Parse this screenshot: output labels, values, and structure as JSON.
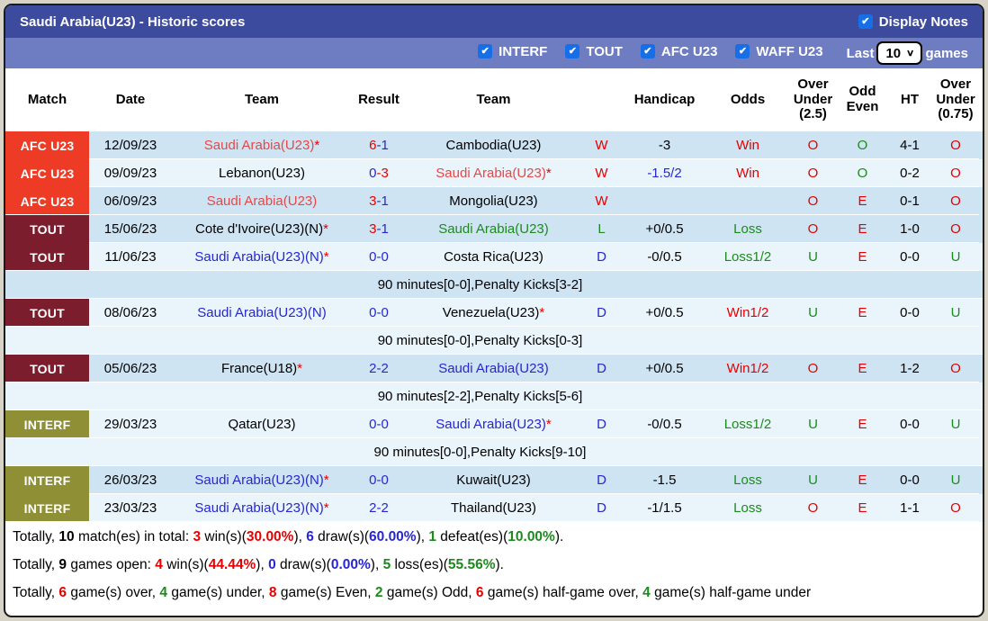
{
  "titlebar": {
    "title": "Saudi Arabia(U23) - Historic scores",
    "display_notes_label": "Display Notes"
  },
  "filterbar": {
    "checkboxes": [
      "INTERF",
      "TOUT",
      "AFC U23",
      "WAFF U23"
    ],
    "last_label": "Last",
    "last_value": "10",
    "games_label": "games"
  },
  "colors": {
    "accent_header": "#3d4b9f",
    "accent_filterbar": "#6e7cc2",
    "badge_afc_u23": "#ee3b26",
    "badge_tout": "#7b1d2c",
    "badge_interf": "#8f8f35",
    "win_red": "#e60000",
    "draw_blue": "#2727cf",
    "loss_green": "#1d8a1d",
    "row_shade_dark": "#cfe4f3",
    "row_shade_light": "#e9f4fb"
  },
  "table": {
    "headers": [
      "Match",
      "Date",
      "Team",
      "Result",
      "Team",
      "",
      "Handicap",
      "Odds",
      "Over Under (2.5)",
      "Odd Even",
      "HT",
      "Over Under (0.75)"
    ],
    "rows": [
      {
        "type": "match",
        "comp": "AFC U23",
        "ck": "afc",
        "join_next": true,
        "date": "12/09/23",
        "t1": {
          "x": "Saudi Arabia(U23)",
          "star": true,
          "c": "tr"
        },
        "s1": {
          "x": "6",
          "c": "r"
        },
        "s2": {
          "x": "1",
          "c": "b"
        },
        "t2": {
          "x": "Cambodia(U23)",
          "star": false,
          "c": "k"
        },
        "wdl": {
          "x": "W",
          "c": "r"
        },
        "hc": {
          "x": "-3",
          "c": "k"
        },
        "od": {
          "x": "Win",
          "c": "r"
        },
        "ou": {
          "x": "O",
          "c": "r"
        },
        "oe": {
          "x": "O",
          "c": "g"
        },
        "ht": "4-1",
        "ou2": {
          "x": "O",
          "c": "r"
        },
        "shade": "m"
      },
      {
        "type": "match",
        "comp": "AFC U23",
        "ck": "afc",
        "join_next": true,
        "date": "09/09/23",
        "t1": {
          "x": "Lebanon(U23)",
          "star": false,
          "c": "k"
        },
        "s1": {
          "x": "0",
          "c": "b"
        },
        "s2": {
          "x": "3",
          "c": "r"
        },
        "t2": {
          "x": "Saudi Arabia(U23)",
          "star": true,
          "c": "tr"
        },
        "wdl": {
          "x": "W",
          "c": "r"
        },
        "hc": {
          "x": "-1.5/2",
          "c": "b"
        },
        "od": {
          "x": "Win",
          "c": "r"
        },
        "ou": {
          "x": "O",
          "c": "r"
        },
        "oe": {
          "x": "O",
          "c": "g"
        },
        "ht": "0-2",
        "ou2": {
          "x": "O",
          "c": "r"
        },
        "shade": "l"
      },
      {
        "type": "match",
        "comp": "AFC U23",
        "ck": "afc",
        "join_next": false,
        "date": "06/09/23",
        "t1": {
          "x": "Saudi Arabia(U23)",
          "star": false,
          "c": "tr"
        },
        "s1": {
          "x": "3",
          "c": "r"
        },
        "s2": {
          "x": "1",
          "c": "b"
        },
        "t2": {
          "x": "Mongolia(U23)",
          "star": false,
          "c": "k"
        },
        "wdl": {
          "x": "W",
          "c": "r"
        },
        "hc": {
          "x": "",
          "c": "k"
        },
        "od": {
          "x": "",
          "c": "k"
        },
        "ou": {
          "x": "O",
          "c": "r"
        },
        "oe": {
          "x": "E",
          "c": "r"
        },
        "ht": "0-1",
        "ou2": {
          "x": "O",
          "c": "r"
        },
        "shade": "m"
      },
      {
        "type": "match",
        "comp": "TOUT",
        "ck": "tout",
        "join_next": true,
        "date": "15/06/23",
        "t1": {
          "x": "Cote d'Ivoire(U23)(N)",
          "star": true,
          "c": "k"
        },
        "s1": {
          "x": "3",
          "c": "r"
        },
        "s2": {
          "x": "1",
          "c": "b"
        },
        "t2": {
          "x": "Saudi Arabia(U23)",
          "star": false,
          "c": "g"
        },
        "wdl": {
          "x": "L",
          "c": "g"
        },
        "hc": {
          "x": "+0/0.5",
          "c": "k"
        },
        "od": {
          "x": "Loss",
          "c": "g"
        },
        "ou": {
          "x": "O",
          "c": "r"
        },
        "oe": {
          "x": "E",
          "c": "r"
        },
        "ht": "1-0",
        "ou2": {
          "x": "O",
          "c": "r"
        },
        "shade": "m"
      },
      {
        "type": "match",
        "comp": "TOUT",
        "ck": "tout",
        "join_next": false,
        "date": "11/06/23",
        "t1": {
          "x": "Saudi Arabia(U23)(N)",
          "star": true,
          "c": "b"
        },
        "s1": {
          "x": "0",
          "c": "b"
        },
        "s2": {
          "x": "0",
          "c": "b"
        },
        "t2": {
          "x": "Costa Rica(U23)",
          "star": false,
          "c": "k"
        },
        "wdl": {
          "x": "D",
          "c": "b"
        },
        "hc": {
          "x": "-0/0.5",
          "c": "k"
        },
        "od": {
          "x": "Loss1/2",
          "c": "g"
        },
        "ou": {
          "x": "U",
          "c": "g"
        },
        "oe": {
          "x": "E",
          "c": "r"
        },
        "ht": "0-0",
        "ou2": {
          "x": "U",
          "c": "g"
        },
        "shade": "l"
      },
      {
        "type": "note",
        "text": "90 minutes[0-0],Penalty Kicks[3-2]",
        "shade": "m"
      },
      {
        "type": "match",
        "comp": "TOUT",
        "ck": "tout",
        "join_next": false,
        "date": "08/06/23",
        "t1": {
          "x": "Saudi Arabia(U23)(N)",
          "star": false,
          "c": "b"
        },
        "s1": {
          "x": "0",
          "c": "b"
        },
        "s2": {
          "x": "0",
          "c": "b"
        },
        "t2": {
          "x": "Venezuela(U23)",
          "star": true,
          "c": "k"
        },
        "wdl": {
          "x": "D",
          "c": "b"
        },
        "hc": {
          "x": "+0/0.5",
          "c": "k"
        },
        "od": {
          "x": "Win1/2",
          "c": "r"
        },
        "ou": {
          "x": "U",
          "c": "g"
        },
        "oe": {
          "x": "E",
          "c": "r"
        },
        "ht": "0-0",
        "ou2": {
          "x": "U",
          "c": "g"
        },
        "shade": "l"
      },
      {
        "type": "note",
        "text": "90 minutes[0-0],Penalty Kicks[0-3]",
        "shade": "l"
      },
      {
        "type": "match",
        "comp": "TOUT",
        "ck": "tout",
        "join_next": false,
        "date": "05/06/23",
        "t1": {
          "x": "France(U18)",
          "star": true,
          "c": "k"
        },
        "s1": {
          "x": "2",
          "c": "b"
        },
        "s2": {
          "x": "2",
          "c": "b"
        },
        "t2": {
          "x": "Saudi Arabia(U23)",
          "star": false,
          "c": "b"
        },
        "wdl": {
          "x": "D",
          "c": "b"
        },
        "hc": {
          "x": "+0/0.5",
          "c": "k"
        },
        "od": {
          "x": "Win1/2",
          "c": "r"
        },
        "ou": {
          "x": "O",
          "c": "r"
        },
        "oe": {
          "x": "E",
          "c": "r"
        },
        "ht": "1-2",
        "ou2": {
          "x": "O",
          "c": "r"
        },
        "shade": "m"
      },
      {
        "type": "note",
        "text": "90 minutes[2-2],Penalty Kicks[5-6]",
        "shade": "l"
      },
      {
        "type": "match",
        "comp": "INTERF",
        "ck": "interf",
        "join_next": false,
        "date": "29/03/23",
        "t1": {
          "x": "Qatar(U23)",
          "star": false,
          "c": "k"
        },
        "s1": {
          "x": "0",
          "c": "b"
        },
        "s2": {
          "x": "0",
          "c": "b"
        },
        "t2": {
          "x": "Saudi Arabia(U23)",
          "star": true,
          "c": "b"
        },
        "wdl": {
          "x": "D",
          "c": "b"
        },
        "hc": {
          "x": "-0/0.5",
          "c": "k"
        },
        "od": {
          "x": "Loss1/2",
          "c": "g"
        },
        "ou": {
          "x": "U",
          "c": "g"
        },
        "oe": {
          "x": "E",
          "c": "r"
        },
        "ht": "0-0",
        "ou2": {
          "x": "U",
          "c": "g"
        },
        "shade": "l"
      },
      {
        "type": "note",
        "text": "90 minutes[0-0],Penalty Kicks[9-10]",
        "shade": "l"
      },
      {
        "type": "match",
        "comp": "INTERF",
        "ck": "interf",
        "join_next": true,
        "date": "26/03/23",
        "t1": {
          "x": "Saudi Arabia(U23)(N)",
          "star": true,
          "c": "b"
        },
        "s1": {
          "x": "0",
          "c": "b"
        },
        "s2": {
          "x": "0",
          "c": "b"
        },
        "t2": {
          "x": "Kuwait(U23)",
          "star": false,
          "c": "k"
        },
        "wdl": {
          "x": "D",
          "c": "b"
        },
        "hc": {
          "x": "-1.5",
          "c": "k"
        },
        "od": {
          "x": "Loss",
          "c": "g"
        },
        "ou": {
          "x": "U",
          "c": "g"
        },
        "oe": {
          "x": "E",
          "c": "r"
        },
        "ht": "0-0",
        "ou2": {
          "x": "U",
          "c": "g"
        },
        "shade": "m"
      },
      {
        "type": "match",
        "comp": "INTERF",
        "ck": "interf",
        "join_next": false,
        "date": "23/03/23",
        "t1": {
          "x": "Saudi Arabia(U23)(N)",
          "star": true,
          "c": "b"
        },
        "s1": {
          "x": "2",
          "c": "b"
        },
        "s2": {
          "x": "2",
          "c": "b"
        },
        "t2": {
          "x": "Thailand(U23)",
          "star": false,
          "c": "k"
        },
        "wdl": {
          "x": "D",
          "c": "b"
        },
        "hc": {
          "x": "-1/1.5",
          "c": "k"
        },
        "od": {
          "x": "Loss",
          "c": "g"
        },
        "ou": {
          "x": "O",
          "c": "r"
        },
        "oe": {
          "x": "E",
          "c": "r"
        },
        "ht": "1-1",
        "ou2": {
          "x": "O",
          "c": "r"
        },
        "shade": "l"
      }
    ]
  },
  "footer": {
    "lines": [
      [
        {
          "t": "Totally, ",
          "c": "k"
        },
        {
          "t": "10",
          "c": "k",
          "b": 1
        },
        {
          "t": " match(es) in total: ",
          "c": "k"
        },
        {
          "t": "3",
          "c": "r",
          "b": 1
        },
        {
          "t": " win(s)(",
          "c": "k"
        },
        {
          "t": "30.00%",
          "c": "r",
          "b": 1
        },
        {
          "t": "), ",
          "c": "k"
        },
        {
          "t": "6",
          "c": "b",
          "b": 1
        },
        {
          "t": " draw(s)(",
          "c": "k"
        },
        {
          "t": "60.00%",
          "c": "b",
          "b": 1
        },
        {
          "t": "), ",
          "c": "k"
        },
        {
          "t": "1",
          "c": "g",
          "b": 1
        },
        {
          "t": " defeat(es)(",
          "c": "k"
        },
        {
          "t": "10.00%",
          "c": "g",
          "b": 1
        },
        {
          "t": ").",
          "c": "k"
        }
      ],
      [
        {
          "t": "Totally, ",
          "c": "k"
        },
        {
          "t": "9",
          "c": "k",
          "b": 1
        },
        {
          "t": " games open: ",
          "c": "k"
        },
        {
          "t": "4",
          "c": "r",
          "b": 1
        },
        {
          "t": " win(s)(",
          "c": "k"
        },
        {
          "t": "44.44%",
          "c": "r",
          "b": 1
        },
        {
          "t": "), ",
          "c": "k"
        },
        {
          "t": "0",
          "c": "b",
          "b": 1
        },
        {
          "t": " draw(s)(",
          "c": "k"
        },
        {
          "t": "0.00%",
          "c": "b",
          "b": 1
        },
        {
          "t": "), ",
          "c": "k"
        },
        {
          "t": "5",
          "c": "g",
          "b": 1
        },
        {
          "t": " loss(es)(",
          "c": "k"
        },
        {
          "t": "55.56%",
          "c": "g",
          "b": 1
        },
        {
          "t": ").",
          "c": "k"
        }
      ],
      [
        {
          "t": "Totally, ",
          "c": "k"
        },
        {
          "t": "6",
          "c": "r",
          "b": 1
        },
        {
          "t": " game(s) over, ",
          "c": "k"
        },
        {
          "t": "4",
          "c": "g",
          "b": 1
        },
        {
          "t": " game(s) under, ",
          "c": "k"
        },
        {
          "t": "8",
          "c": "r",
          "b": 1
        },
        {
          "t": " game(s) Even, ",
          "c": "k"
        },
        {
          "t": "2",
          "c": "g",
          "b": 1
        },
        {
          "t": " game(s) Odd, ",
          "c": "k"
        },
        {
          "t": "6",
          "c": "r",
          "b": 1
        },
        {
          "t": " game(s) half-game over, ",
          "c": "k"
        },
        {
          "t": "4",
          "c": "g",
          "b": 1
        },
        {
          "t": " game(s) half-game under",
          "c": "k"
        }
      ]
    ]
  }
}
